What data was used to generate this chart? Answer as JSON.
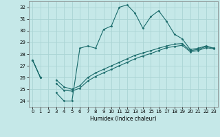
{
  "xlabel": "Humidex (Indice chaleur)",
  "background_color": "#c5e8e8",
  "grid_color": "#aad4d4",
  "line_color": "#1a6b6b",
  "xlim": [
    -0.5,
    23.5
  ],
  "ylim": [
    23.5,
    32.5
  ],
  "yticks": [
    24,
    25,
    26,
    27,
    28,
    29,
    30,
    31,
    32
  ],
  "xticks": [
    0,
    1,
    2,
    3,
    4,
    5,
    6,
    7,
    8,
    9,
    10,
    11,
    12,
    13,
    14,
    15,
    16,
    17,
    18,
    19,
    20,
    21,
    22,
    23
  ],
  "series": [
    [
      27.5,
      26.0,
      null,
      24.7,
      24.0,
      24.0,
      28.5,
      28.7,
      28.5,
      30.1,
      30.4,
      32.0,
      32.2,
      31.5,
      30.2,
      31.2,
      31.7,
      30.8,
      29.7,
      29.3,
      28.4,
      28.5,
      28.7,
      28.5
    ],
    [
      27.5,
      26.0,
      null,
      25.8,
      25.2,
      25.0,
      25.3,
      26.0,
      26.4,
      26.7,
      27.0,
      27.3,
      27.6,
      27.9,
      28.1,
      28.3,
      28.5,
      28.7,
      28.85,
      28.9,
      28.3,
      28.4,
      28.65,
      28.5
    ],
    [
      27.5,
      26.0,
      null,
      25.5,
      24.9,
      24.85,
      25.1,
      25.7,
      26.1,
      26.4,
      26.7,
      27.0,
      27.3,
      27.6,
      27.85,
      28.05,
      28.3,
      28.55,
      28.65,
      28.75,
      28.2,
      28.3,
      28.55,
      28.45
    ]
  ]
}
